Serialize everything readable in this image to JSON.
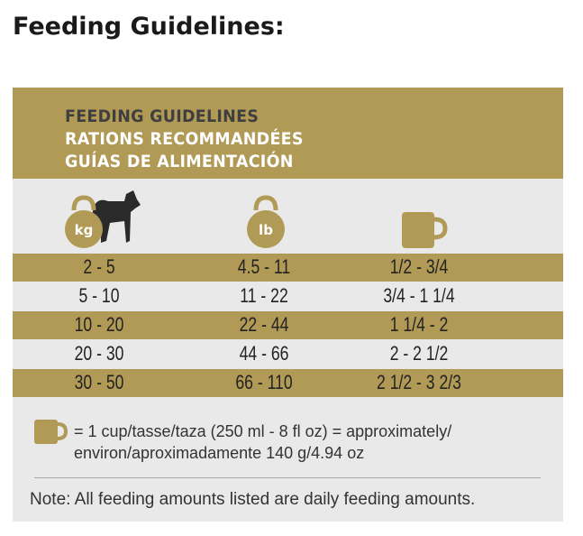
{
  "title": "Feeding Guidelines:",
  "panel": {
    "heading": [
      "FEEDING GUIDELINES",
      "RATIONS RECOMMANDÉES",
      "GUÍAS DE ALIMENTACIÓN"
    ],
    "icons": [
      "kg",
      "lb"
    ],
    "rows": [
      [
        "2 - 5",
        "4.5 - 11",
        "1/2 - 3/4"
      ],
      [
        "5 - 10",
        "11 - 22",
        "3/4 - 1 1/4"
      ],
      [
        "10 - 20",
        "22 - 44",
        "1 1/4 - 2"
      ],
      [
        "20 - 30",
        "44 - 66",
        "2 - 2 1/2"
      ],
      [
        "30 - 50",
        "66 - 110",
        "2 1/2 - 3 2/3"
      ]
    ],
    "footnote": [
      "= 1 cup/tasse/taza (250 ml - 8 fl oz) = approximately/",
      "environ/aproximadamente 140 g/4.94 oz"
    ],
    "note": "Note: All feeding amounts listed are daily feeding amounts."
  }
}
